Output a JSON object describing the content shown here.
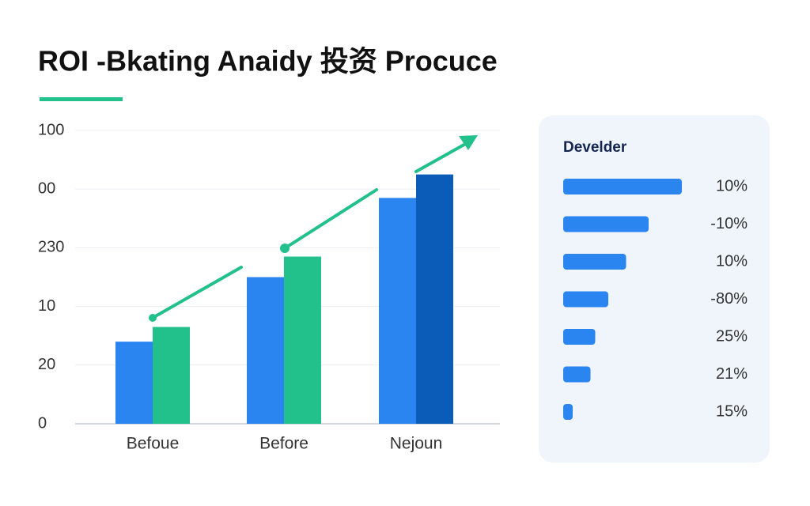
{
  "chart_data": [
    {
      "type": "bar",
      "title": "ROI -Bkating Anaidy 投资 Procuce",
      "categories": [
        "Befoue",
        "Before",
        "Nejoun"
      ],
      "series": [
        {
          "color": "#2a85f0",
          "values": [
            28,
            50,
            77
          ]
        },
        {
          "color": "#22c08a",
          "colors": [
            "#22c08a",
            "#22c08a",
            "#0b5cb8"
          ],
          "values": [
            33,
            57,
            85
          ]
        }
      ],
      "ylim": [
        0,
        100
      ],
      "yticks": [
        0,
        20,
        {
          "value": 40,
          "label": "10"
        },
        {
          "value": 60,
          "label": "230"
        },
        {
          "value": 80,
          "label": "00"
        },
        100
      ],
      "grid": true
    },
    {
      "type": "hbar",
      "title": "Develder",
      "color": "#2a85f0",
      "values": [
        100,
        72,
        53,
        38,
        27,
        23,
        8
      ],
      "labels": [
        "10%",
        "-10%",
        "10%",
        "-80%",
        "25%",
        "21%",
        "15%"
      ],
      "xlim": [
        0,
        100
      ]
    }
  ]
}
